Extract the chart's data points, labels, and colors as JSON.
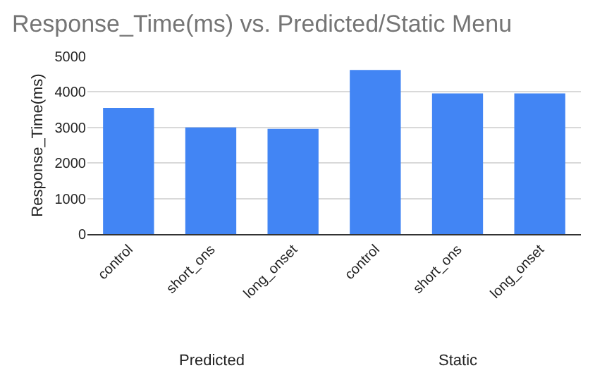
{
  "chart_data": {
    "type": "bar",
    "title": "Response_Time(ms) vs. Predicted/Static Menu",
    "ylabel": "Response_Time(ms)",
    "categories": [
      "control",
      "short_ons",
      "long_onset",
      "control",
      "short_ons",
      "long_onset"
    ],
    "values": [
      3550,
      3000,
      2960,
      4620,
      3960,
      3960
    ],
    "color": "#4285f4",
    "ylim": [
      0,
      5000
    ],
    "yticks": [
      0,
      1000,
      2000,
      3000,
      4000,
      5000
    ],
    "grid": "y",
    "annotations": [
      "Predicted",
      "Static"
    ]
  }
}
